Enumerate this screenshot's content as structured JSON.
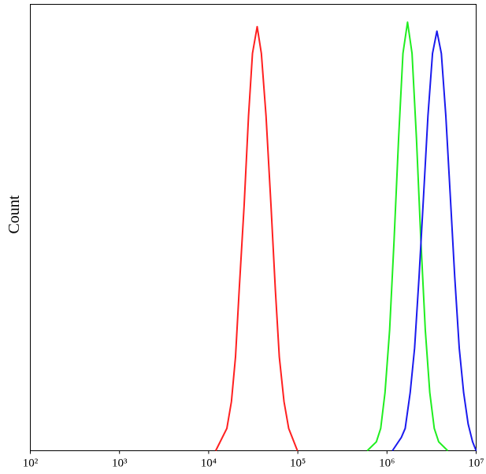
{
  "chart_data": {
    "type": "line",
    "ylabel": "Count",
    "xscale": "log",
    "xlim": [
      100,
      10000000
    ],
    "xticks": [
      {
        "value": 100,
        "label": "10²"
      },
      {
        "value": 1000,
        "label": "10³"
      },
      {
        "value": 10000,
        "label": "10⁴"
      },
      {
        "value": 100000,
        "label": "10⁵"
      },
      {
        "value": 1000000,
        "label": "10⁶"
      },
      {
        "value": 10000000,
        "label": "10⁷"
      }
    ],
    "ylim": [
      0,
      100
    ],
    "series": [
      {
        "color": "#ff2020",
        "x": [
          12000,
          16000,
          18000,
          20000,
          22000,
          25000,
          28000,
          31000,
          35000,
          39000,
          44000,
          50000,
          56000,
          62000,
          70000,
          79000,
          99000
        ],
        "values": [
          0,
          5,
          11,
          21,
          36,
          55,
          75,
          89,
          95,
          89,
          75,
          55,
          36,
          21,
          11,
          5,
          0
        ]
      },
      {
        "color": "#20ee20",
        "x": [
          600000,
          760000,
          850000,
          950000,
          1070000,
          1200000,
          1350000,
          1510000,
          1700000,
          1910000,
          2140000,
          2400000,
          2690000,
          3020000,
          3390000,
          3800000,
          4800000
        ],
        "values": [
          0,
          2,
          5,
          13,
          27,
          47,
          70,
          89,
          96,
          89,
          70,
          47,
          27,
          13,
          5,
          2,
          0
        ]
      },
      {
        "color": "#1a1aee",
        "x": [
          1150000,
          1450000,
          1600000,
          1820000,
          2040000,
          2290000,
          2570000,
          2880000,
          3240000,
          3630000,
          4070000,
          4570000,
          5130000,
          5750000,
          6460000,
          7240000,
          8130000,
          9120000,
          10000000
        ],
        "values": [
          0,
          3,
          5,
          13,
          23,
          39,
          57,
          75,
          89,
          94,
          89,
          75,
          57,
          39,
          23,
          13,
          6,
          2,
          0
        ]
      }
    ]
  }
}
